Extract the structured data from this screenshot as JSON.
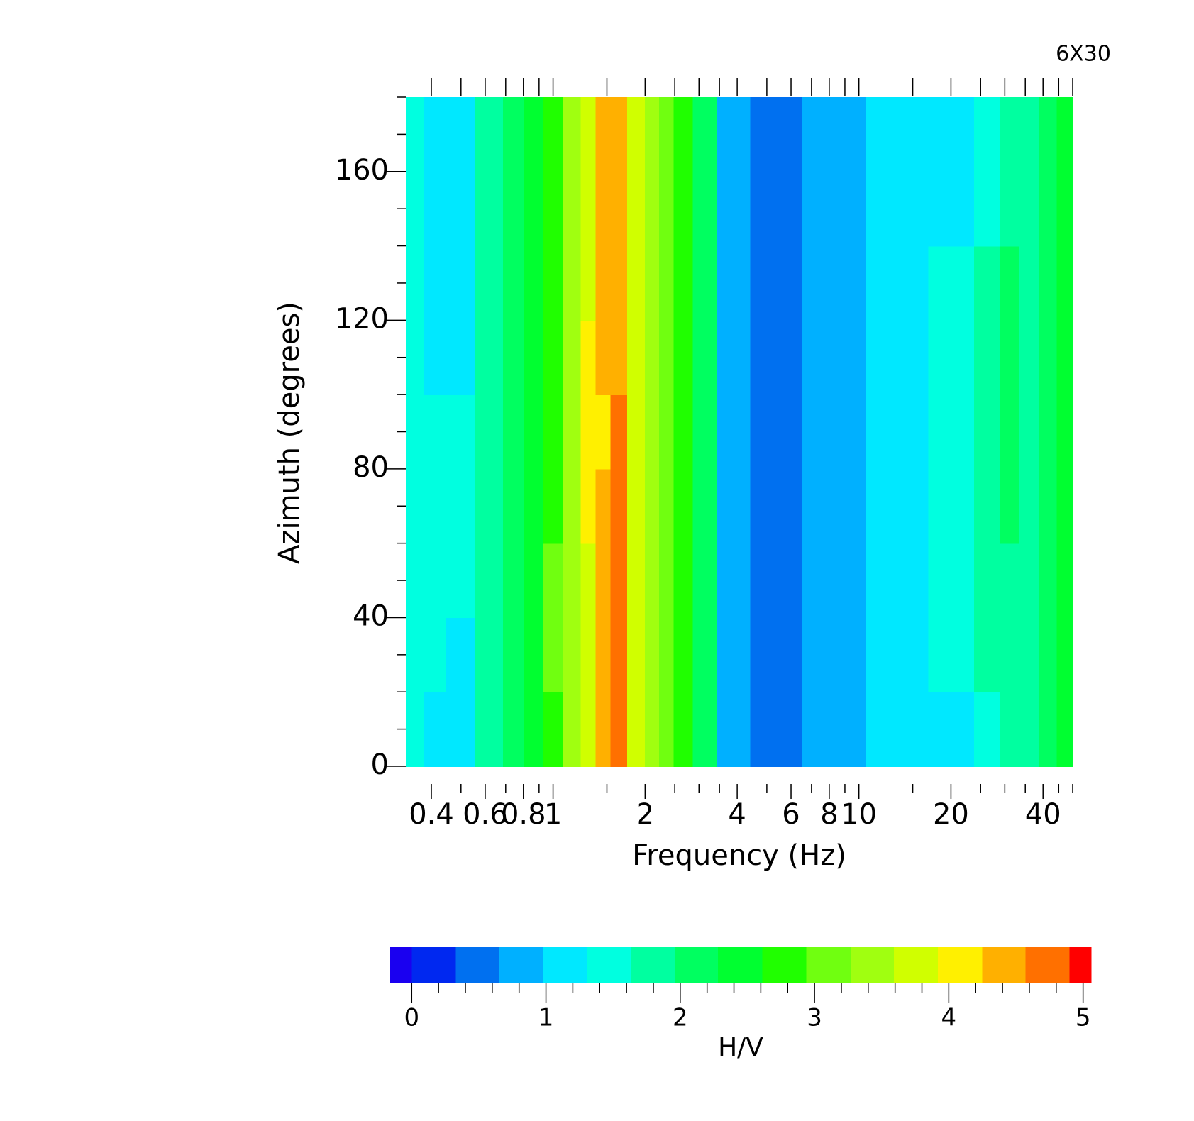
{
  "chart_data": {
    "type": "heatmap",
    "title": "6X30",
    "x_label": "Frequency (Hz)",
    "y_label": "Azimuth (degrees)",
    "x_scale": "log",
    "xlim": [
      0.33,
      50
    ],
    "ylim": [
      0,
      180
    ],
    "xticks": [
      0.4,
      0.6,
      0.8,
      1,
      2,
      4,
      6,
      8,
      10,
      20,
      40
    ],
    "x_minor_ticks": [
      0.5,
      0.7,
      0.9,
      1.5,
      2.5,
      3,
      3.5,
      5,
      7,
      9,
      15,
      25,
      30,
      35,
      45,
      50
    ],
    "yticks": [
      0,
      40,
      80,
      120,
      160
    ],
    "y_minor_ticks": [
      10,
      20,
      30,
      50,
      60,
      70,
      90,
      100,
      110,
      130,
      140,
      150,
      170,
      180
    ],
    "x": [
      0.355,
      0.405,
      0.49,
      0.63,
      0.75,
      0.86,
      1.0,
      1.17,
      1.3,
      1.46,
      1.63,
      1.88,
      2.12,
      2.34,
      2.63,
      3.12,
      3.76,
      5.2,
      8.2,
      13.6,
      21,
      27,
      31,
      36,
      42,
      47
    ],
    "y": [
      10,
      30,
      50,
      70,
      90,
      110,
      130,
      150,
      170
    ],
    "z": [
      [
        1.45,
        1.15,
        1.15,
        1.8,
        2.1,
        2.45,
        2.8,
        3.4,
        3.75,
        4.4,
        4.7,
        3.75,
        3.4,
        3.1,
        2.8,
        2.1,
        0.8,
        0.5,
        0.8,
        1.15,
        1.15,
        1.45,
        1.8,
        1.8,
        2.1,
        2.45
      ],
      [
        1.45,
        1.45,
        1.15,
        1.8,
        2.1,
        2.45,
        3.1,
        3.4,
        3.75,
        4.4,
        4.7,
        3.75,
        3.4,
        3.1,
        2.8,
        2.1,
        0.8,
        0.5,
        0.8,
        1.15,
        1.45,
        1.8,
        1.8,
        1.8,
        2.1,
        2.45
      ],
      [
        1.45,
        1.45,
        1.45,
        1.8,
        2.1,
        2.45,
        3.1,
        3.4,
        3.75,
        4.4,
        4.7,
        3.75,
        3.4,
        3.1,
        2.8,
        2.1,
        0.8,
        0.5,
        0.8,
        1.15,
        1.45,
        1.8,
        1.8,
        1.8,
        2.1,
        2.45
      ],
      [
        1.45,
        1.45,
        1.45,
        1.8,
        2.1,
        2.45,
        2.8,
        3.4,
        4.1,
        4.4,
        4.7,
        3.75,
        3.4,
        3.1,
        2.8,
        2.1,
        0.8,
        0.5,
        0.8,
        1.15,
        1.45,
        1.8,
        2.1,
        1.8,
        2.1,
        2.45
      ],
      [
        1.45,
        1.45,
        1.45,
        1.8,
        2.1,
        2.45,
        2.8,
        3.4,
        4.1,
        4.1,
        4.7,
        3.75,
        3.4,
        3.1,
        2.8,
        2.1,
        0.8,
        0.5,
        0.8,
        1.15,
        1.45,
        1.8,
        2.1,
        1.8,
        2.1,
        2.45
      ],
      [
        1.45,
        1.15,
        1.15,
        1.8,
        2.1,
        2.45,
        2.8,
        3.4,
        4.1,
        4.4,
        4.4,
        3.75,
        3.4,
        3.1,
        2.8,
        2.1,
        0.8,
        0.5,
        0.8,
        1.15,
        1.45,
        1.8,
        2.1,
        1.8,
        2.1,
        2.45
      ],
      [
        1.45,
        1.15,
        1.15,
        1.8,
        2.1,
        2.45,
        2.8,
        3.4,
        3.75,
        4.4,
        4.4,
        3.75,
        3.4,
        3.1,
        2.8,
        2.1,
        0.8,
        0.5,
        0.8,
        1.15,
        1.45,
        1.8,
        2.1,
        1.8,
        2.1,
        2.45
      ],
      [
        1.45,
        1.15,
        1.15,
        1.8,
        2.1,
        2.45,
        2.8,
        3.4,
        3.75,
        4.4,
        4.4,
        3.75,
        3.4,
        3.1,
        2.8,
        2.1,
        0.8,
        0.5,
        0.8,
        1.15,
        1.15,
        1.45,
        1.8,
        1.8,
        2.1,
        2.45
      ],
      [
        1.45,
        1.15,
        1.15,
        1.8,
        2.1,
        2.45,
        2.8,
        3.4,
        3.75,
        4.4,
        4.4,
        3.75,
        3.4,
        3.1,
        2.8,
        2.1,
        0.8,
        0.5,
        0.8,
        1.15,
        1.15,
        1.45,
        1.8,
        1.8,
        2.1,
        2.45
      ]
    ],
    "colorbar": {
      "label": "H/V",
      "levels": [
        -0.16,
        0,
        0.33,
        0.65,
        0.98,
        1.31,
        1.63,
        1.96,
        2.28,
        2.61,
        2.94,
        3.27,
        3.59,
        3.92,
        4.25,
        4.57,
        4.9,
        5.06
      ],
      "colors": [
        "#1a00f0",
        "#0028f0",
        "#0070f0",
        "#00b0ff",
        "#00e8ff",
        "#00ffe0",
        "#00ffa0",
        "#00ff60",
        "#00ff30",
        "#20ff00",
        "#70ff10",
        "#a0ff10",
        "#d0ff00",
        "#fff000",
        "#ffb000",
        "#ff7000",
        "#ff0000"
      ],
      "ticks": [
        0,
        1,
        2,
        3,
        4,
        5
      ],
      "minor_ticks": [
        0.2,
        0.4,
        0.6,
        0.8,
        1.2,
        1.4,
        1.6,
        1.8,
        2.2,
        2.4,
        2.6,
        2.8,
        3.2,
        3.4,
        3.6,
        3.8,
        4.2,
        4.4,
        4.6,
        4.8
      ]
    }
  }
}
